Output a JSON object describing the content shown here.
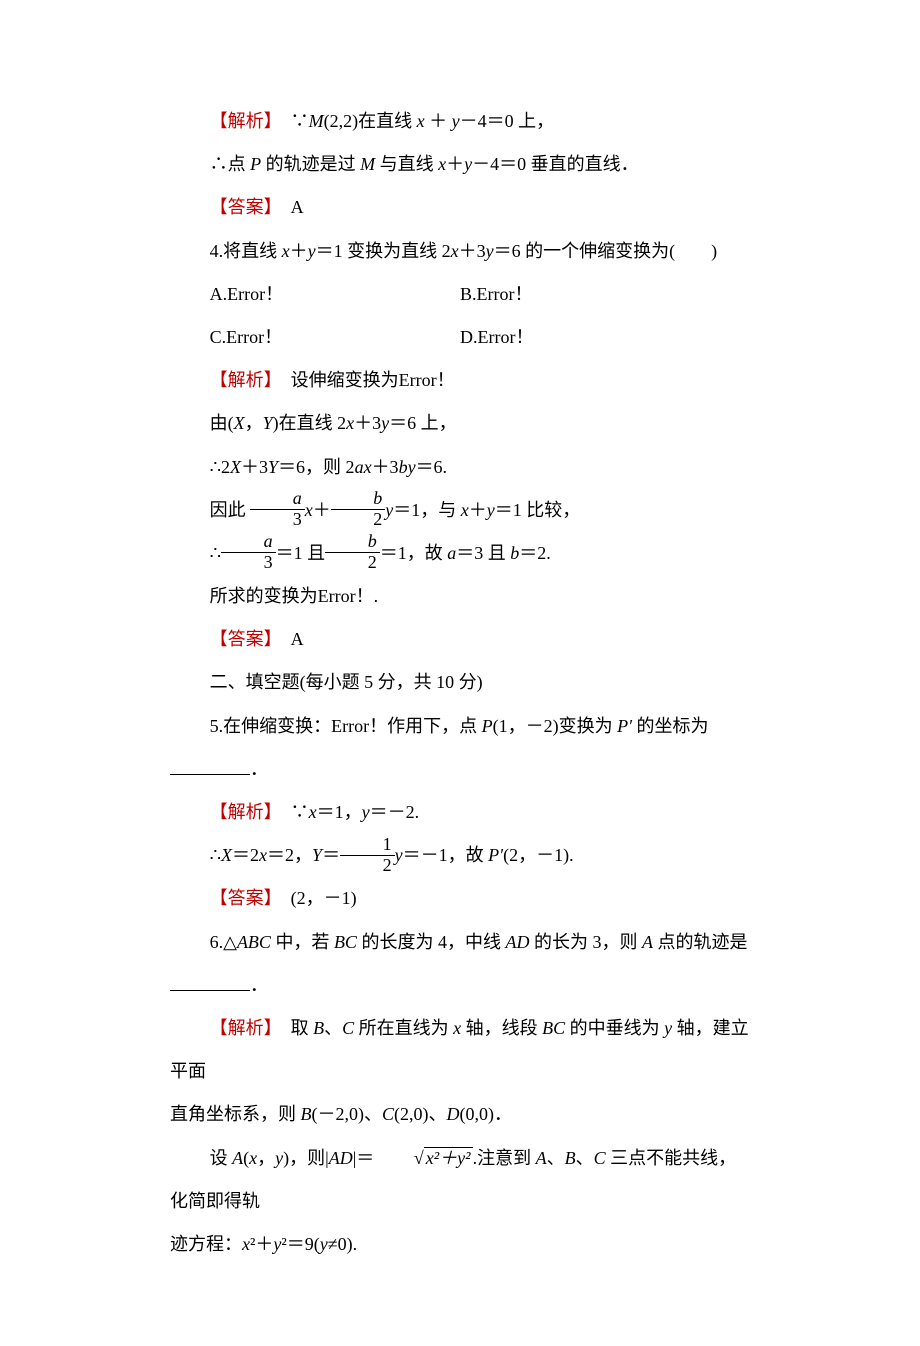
{
  "colors": {
    "red": "#c00000",
    "text": "#000000",
    "bg": "#ffffff"
  },
  "typography": {
    "body_pt": 12,
    "body_family": "SimSun / 宋体",
    "math_family": "Times New Roman",
    "line_height": 2.4
  },
  "lines": {
    "l1_label": "【解析】",
    "l1_text_a": "∵",
    "l1_text_b": "M",
    "l1_text_c": "(2,2)在直线 ",
    "l1_text_d": "x",
    "l1_text_e": " ＋ ",
    "l1_text_f": "y",
    "l1_text_g": "－4＝0 上，",
    "l2_a": "∴点 ",
    "l2_b": "P",
    "l2_c": " 的轨迹是过 ",
    "l2_d": "M",
    "l2_e": " 与直线 ",
    "l2_f": "x",
    "l2_g": "＋",
    "l2_h": "y",
    "l2_i": "－4＝0 垂直的直线．",
    "l3_label": "【答案】",
    "l3_text": "A",
    "q4_a": "4.将直线 ",
    "q4_b": "x",
    "q4_c": "＋",
    "q4_d": "y",
    "q4_e": "＝1 变换为直线 2",
    "q4_f": "x",
    "q4_g": "＋3",
    "q4_h": "y",
    "q4_i": "＝6 的一个伸缩变换为(　　)",
    "opt_a": "A.Error！",
    "opt_b": "B.Error！",
    "opt_c": "C.Error！",
    "opt_d": "D.Error！",
    "l5_label": "【解析】",
    "l5_text": "设伸缩变换为Error！",
    "l6_a": "由(",
    "l6_b": "X",
    "l6_c": "，",
    "l6_d": "Y",
    "l6_e": ")在直线 2",
    "l6_f": "x",
    "l6_g": "＋3",
    "l6_h": "y",
    "l6_i": "＝6 上，",
    "l7_a": "∴2",
    "l7_b": "X",
    "l7_c": "＋3",
    "l7_d": "Y",
    "l7_e": "＝6，则 2",
    "l7_f": "ax",
    "l7_g": "＋3",
    "l7_h": "by",
    "l7_i": "＝6.",
    "l8_a": "因此 ",
    "l8_frac1_num": "a",
    "l8_frac1_den": "3",
    "l8_b": "x",
    "l8_c": "＋",
    "l8_frac2_num": "b",
    "l8_frac2_den": "2",
    "l8_d": "y",
    "l8_e": "＝1，与 ",
    "l8_f": "x",
    "l8_g": "＋",
    "l8_h": "y",
    "l8_i": "＝1 比较，",
    "l9_a": "∴",
    "l9_frac1_num": "a",
    "l9_frac1_den": "3",
    "l9_b": "＝1 且",
    "l9_frac2_num": "b",
    "l9_frac2_den": "2",
    "l9_c": "＝1，故 ",
    "l9_d": "a",
    "l9_e": "＝3 且 ",
    "l9_f": "b",
    "l9_g": "＝2.",
    "l10": "所求的变换为Error！.",
    "l11_label": "【答案】",
    "l11_text": "A",
    "h2": "二、填空题(每小题 5 分，共 10 分)",
    "q5_a": "5.在伸缩变换：Error！作用下，点 ",
    "q5_b": "P",
    "q5_c": "(1，－2)变换为 ",
    "q5_d": "P′",
    "q5_e": " 的坐标为",
    "q5_f": "．",
    "l12_label": "【解析】",
    "l12_a": "∵",
    "l12_b": "x",
    "l12_c": "＝1，",
    "l12_d": "y",
    "l12_e": "＝－2.",
    "l13_a": "∴",
    "l13_b": "X",
    "l13_c": "＝2",
    "l13_d": "x",
    "l13_e": "＝2，",
    "l13_f": "Y",
    "l13_g": "＝",
    "l13_frac_num": "1",
    "l13_frac_den": "2",
    "l13_h": "y",
    "l13_i": "＝－1，故 ",
    "l13_j": "P′",
    "l13_k": "(2，－1).",
    "l14_label": "【答案】",
    "l14_text": "(2，－1)",
    "q6_a": "6.△",
    "q6_b": "ABC",
    "q6_c": " 中，若 ",
    "q6_d": "BC",
    "q6_e": " 的长度为 4，中线 ",
    "q6_f": "AD",
    "q6_g": " 的长为 3，则 ",
    "q6_h": "A",
    "q6_i": " 点的轨迹是",
    "q6_j": "．",
    "l15_label": "【解析】",
    "l15_a": "取 ",
    "l15_b": "B",
    "l15_c": "、",
    "l15_d": "C",
    "l15_e": " 所在直线为 ",
    "l15_f": "x",
    "l15_g": " 轴，线段 ",
    "l15_h": "BC",
    "l15_i": " 的中垂线为 ",
    "l15_j": "y",
    "l15_k": " 轴，建立平面",
    "l16_a": "直角坐标系，则 ",
    "l16_b": "B",
    "l16_c": "(－2,0)、",
    "l16_d": "C",
    "l16_e": "(2,0)、",
    "l16_f": "D",
    "l16_g": "(0,0)．",
    "l17_a": "设 ",
    "l17_b": "A",
    "l17_c": "(",
    "l17_d": "x",
    "l17_e": "，",
    "l17_f": "y",
    "l17_g": ")，则|",
    "l17_h": "AD",
    "l17_i": "|＝",
    "l17_sqrt": "x²＋y²",
    "l17_j": ".注意到 ",
    "l17_k": "A",
    "l17_l": "、",
    "l17_m": "B",
    "l17_n": "、",
    "l17_o": "C",
    "l17_p": " 三点不能共线，化简即得轨",
    "l18_a": "迹方程：",
    "l18_b": "x",
    "l18_c": "²＋",
    "l18_d": "y",
    "l18_e": "²＝9(",
    "l18_f": "y",
    "l18_g": "≠0)."
  }
}
